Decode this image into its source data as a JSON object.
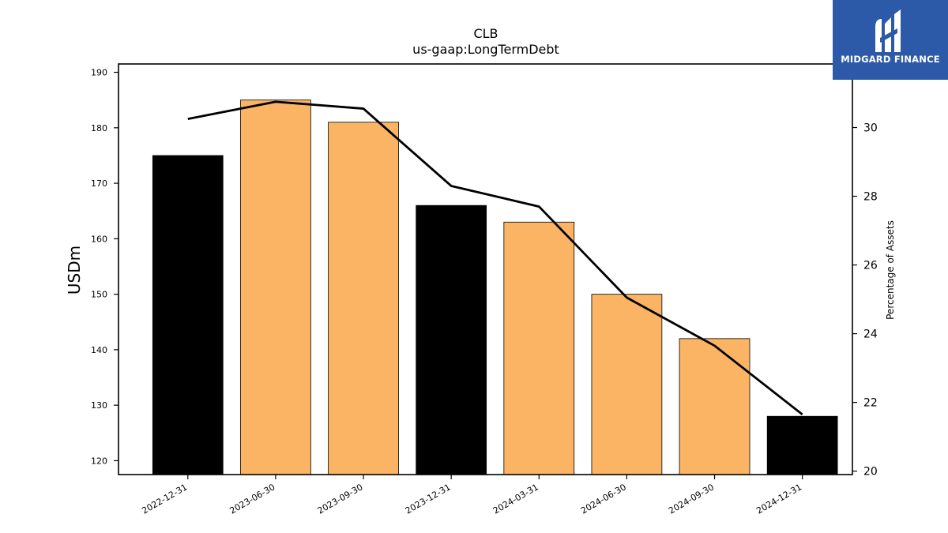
{
  "brand": {
    "name": "MIDGARD FINANCE",
    "bg_color": "#2d5aa8"
  },
  "chart_data": {
    "type": "bar",
    "title": "CLB",
    "subtitle": "us-gaap:LongTermDebt",
    "ylabel": "USDm",
    "y2label": "Percentage of Assets",
    "categories": [
      "2022-12-31",
      "2023-06-30",
      "2023-09-30",
      "2023-12-31",
      "2024-03-31",
      "2024-06-30",
      "2024-09-30",
      "2024-12-31"
    ],
    "values": [
      175,
      185,
      181,
      166,
      163,
      150,
      142,
      128
    ],
    "bar_colors": [
      "#000000",
      "#fbb464",
      "#fbb464",
      "#000000",
      "#fbb464",
      "#fbb464",
      "#fbb464",
      "#000000"
    ],
    "ylim": [
      117.5,
      191.5
    ],
    "yticks": [
      120,
      130,
      140,
      150,
      160,
      170,
      180,
      190
    ],
    "line": {
      "type": "line",
      "axis": "right",
      "color": "#000000",
      "values": [
        30.25,
        30.75,
        30.55,
        28.3,
        27.7,
        25.05,
        23.65,
        21.65
      ]
    },
    "y2lim": [
      19.9,
      31.85
    ],
    "y2ticks": [
      20,
      22,
      24,
      26,
      28,
      30
    ],
    "grid": false,
    "legend": "none"
  }
}
